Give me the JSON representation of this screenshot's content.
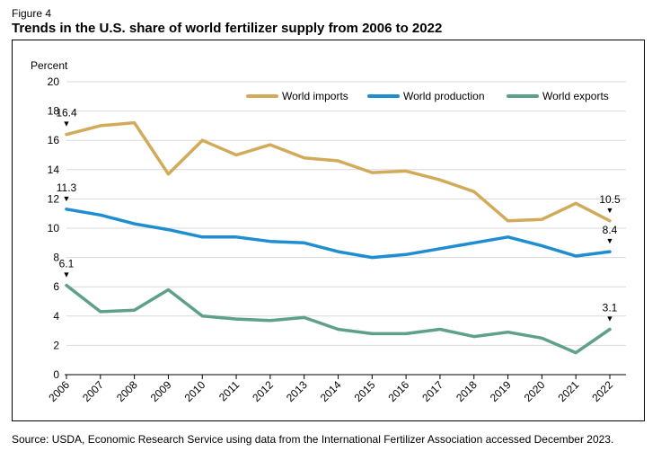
{
  "figure_label": "Figure 4",
  "title": "Trends in the U.S. share of world fertilizer supply from 2006 to 2022",
  "source": "Source: USDA, Economic Research Service using data from the International Fertilizer Association accessed December 2023.",
  "colors": {
    "imports": "#d2ab5a",
    "production": "#1f8ed1",
    "exports": "#5fa08a",
    "grid": "#d9d9d9",
    "axis": "#000000"
  },
  "chart_data": {
    "type": "line",
    "title": "Trends in the U.S. share of world fertilizer supply from 2006 to 2022",
    "xlabel": "",
    "ylabel": "Percent",
    "ylim": [
      0,
      20
    ],
    "yticks": [
      0,
      2,
      4,
      6,
      8,
      10,
      12,
      14,
      16,
      18,
      20
    ],
    "grid": true,
    "legend_position": "top-right",
    "categories": [
      "2006",
      "2007",
      "2008",
      "2009",
      "2010",
      "2011",
      "2012",
      "2013",
      "2014",
      "2015",
      "2016",
      "2017",
      "2018",
      "2019",
      "2020",
      "2021",
      "2022"
    ],
    "series": [
      {
        "name": "World imports",
        "key": "imports",
        "values": [
          16.4,
          17.0,
          17.2,
          13.7,
          16.0,
          15.0,
          15.7,
          14.8,
          14.6,
          13.8,
          13.9,
          13.3,
          12.5,
          10.5,
          10.6,
          11.7,
          10.5
        ]
      },
      {
        "name": "World production",
        "key": "production",
        "values": [
          11.3,
          10.9,
          10.3,
          9.9,
          9.4,
          9.4,
          9.1,
          9.0,
          8.4,
          8.0,
          8.2,
          8.6,
          9.0,
          9.4,
          8.8,
          8.1,
          8.4
        ]
      },
      {
        "name": "World exports",
        "key": "exports",
        "values": [
          6.1,
          4.3,
          4.4,
          5.8,
          4.0,
          3.8,
          3.7,
          3.9,
          3.1,
          2.8,
          2.8,
          3.1,
          2.6,
          2.9,
          2.5,
          1.5,
          3.1
        ]
      }
    ],
    "annotations": [
      {
        "series": "imports",
        "category": "2006",
        "text": "16.4"
      },
      {
        "series": "imports",
        "category": "2022",
        "text": "10.5"
      },
      {
        "series": "production",
        "category": "2006",
        "text": "11.3"
      },
      {
        "series": "production",
        "category": "2022",
        "text": "8.4"
      },
      {
        "series": "exports",
        "category": "2006",
        "text": "6.1"
      },
      {
        "series": "exports",
        "category": "2022",
        "text": "3.1"
      }
    ],
    "annotation_marker": "▼"
  }
}
